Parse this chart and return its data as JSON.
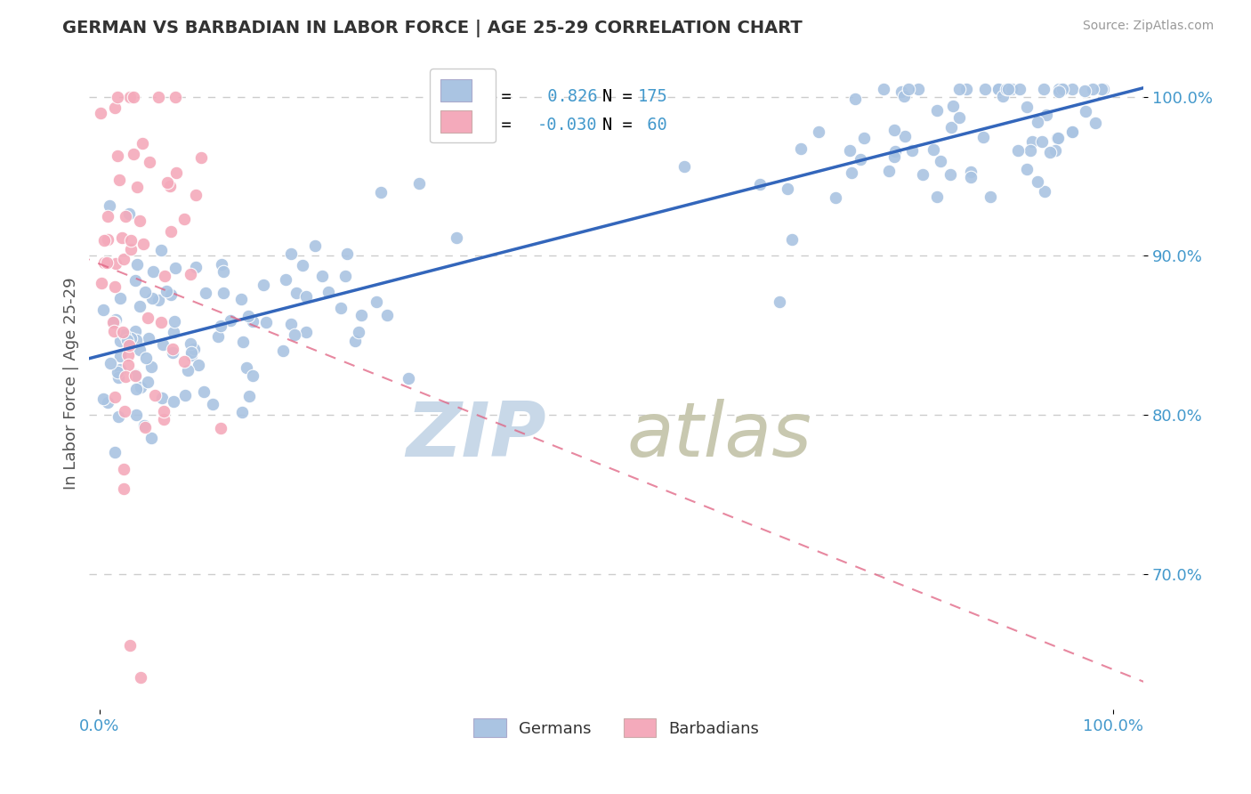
{
  "title": "GERMAN VS BARBADIAN IN LABOR FORCE | AGE 25-29 CORRELATION CHART",
  "source": "Source: ZipAtlas.com",
  "ylabel": "In Labor Force | Age 25-29",
  "german_R": 0.826,
  "german_N": 175,
  "barbadian_R": -0.03,
  "barbadian_N": 60,
  "german_color": "#aac4e2",
  "german_line_color": "#3366bb",
  "barbadian_color": "#f4aabb",
  "barbadian_line_color": "#e06080",
  "tick_label_color": "#4499cc",
  "legend_label_color": "#4499cc",
  "grid_color": "#cccccc",
  "background_color": "#ffffff",
  "title_color": "#333333",
  "source_color": "#999999",
  "axis_label_color": "#555555",
  "legend_label1": "Germans",
  "legend_label2": "Barbadians",
  "watermark_zip_color": "#c8d8e8",
  "watermark_atlas_color": "#c8c8b0",
  "ylim_low": 0.615,
  "ylim_high": 1.025,
  "xlim_low": -0.01,
  "xlim_high": 1.03
}
